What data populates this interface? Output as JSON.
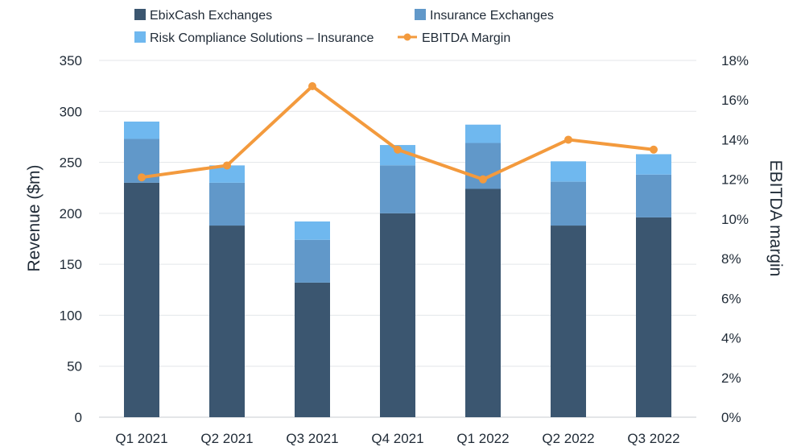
{
  "chart_data": {
    "type": "bar",
    "stacked": true,
    "title": "",
    "categories": [
      "Q1 2021",
      "Q2 2021",
      "Q3 2021",
      "Q4 2021",
      "Q1 2022",
      "Q2 2022",
      "Q3 2022"
    ],
    "series": [
      {
        "name": "EbixCash Exchanges",
        "type": "bar",
        "axis": "left",
        "color": "#3b5670",
        "values": [
          230,
          188,
          132,
          200,
          224,
          188,
          196
        ]
      },
      {
        "name": "Insurance Exchanges",
        "type": "bar",
        "axis": "left",
        "color": "#6198c9",
        "values": [
          43,
          42,
          42,
          47,
          45,
          43,
          42
        ]
      },
      {
        "name": "Risk Compliance Solutions – Insurance",
        "type": "bar",
        "axis": "left",
        "color": "#6fb8ef",
        "values": [
          17,
          17,
          18,
          20,
          18,
          20,
          20
        ]
      },
      {
        "name": "EBITDA Margin",
        "type": "line",
        "axis": "right",
        "color": "#f39a3d",
        "values": [
          12.1,
          12.7,
          16.7,
          13.5,
          12.0,
          14.0,
          13.5
        ]
      }
    ],
    "ylabel": "Revenue ($m)",
    "y2label": "EBITDA margin",
    "ylim": [
      0,
      350
    ],
    "y2lim": [
      0,
      18
    ],
    "yticks": [
      "0",
      "50",
      "100",
      "150",
      "200",
      "250",
      "300",
      "350"
    ],
    "y2ticks": [
      "0%",
      "2%",
      "4%",
      "6%",
      "8%",
      "10%",
      "12%",
      "14%",
      "16%",
      "18%"
    ],
    "grid": true,
    "legend_position": "top"
  }
}
